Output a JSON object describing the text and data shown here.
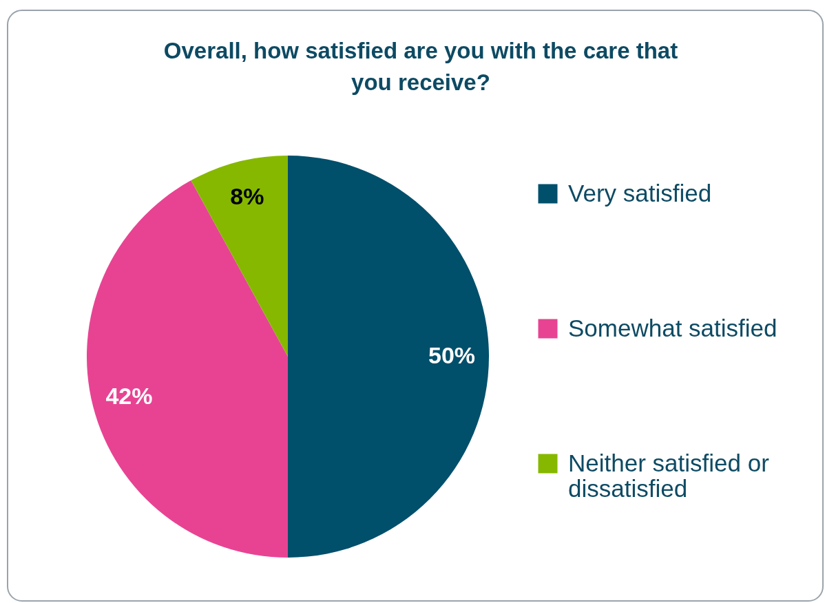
{
  "chart_data": {
    "type": "pie",
    "title": "Overall, how satisfied are you with the care that you receive?",
    "categories": [
      "Very satisfied",
      "Somewhat satisfied",
      "Neither satisfied or dissatisfied"
    ],
    "values": [
      50,
      42,
      8
    ],
    "colors": [
      "#004f6b",
      "#e84393",
      "#86b800"
    ],
    "value_labels": [
      "50%",
      "42%",
      "8%"
    ],
    "legend": "right"
  }
}
